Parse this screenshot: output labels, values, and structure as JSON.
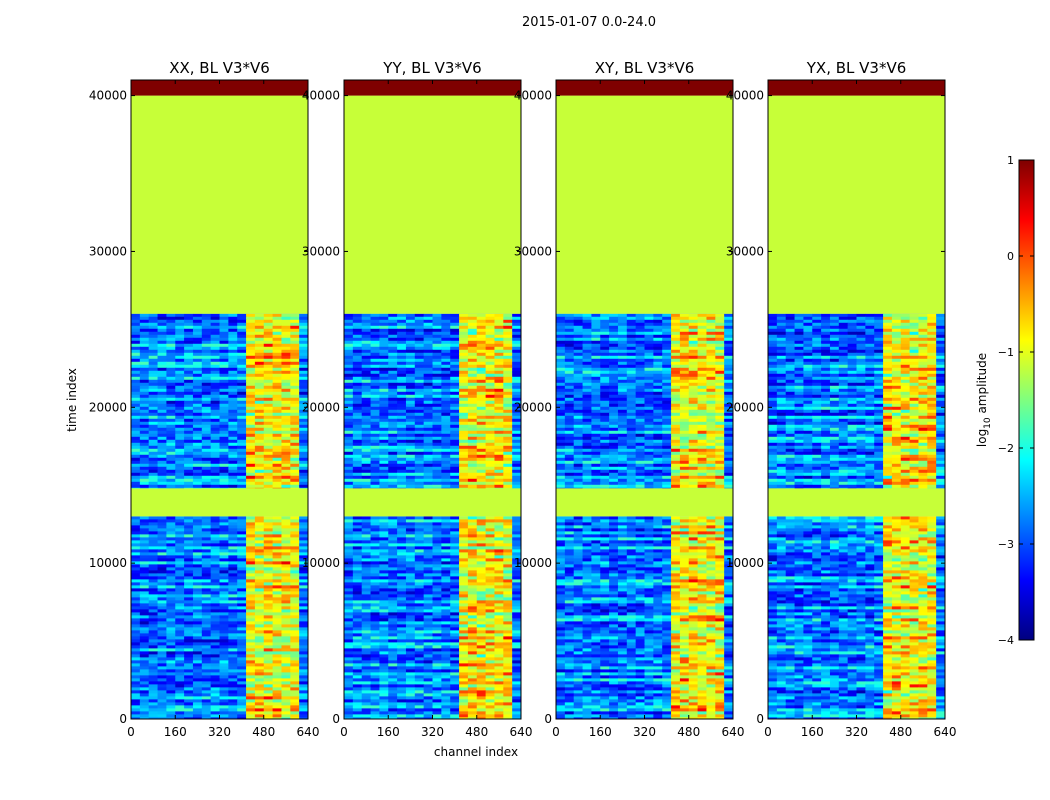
{
  "figure_title": "2015-01-07 0.0-24.0",
  "x_axis_label": "channel index",
  "y_axis_label": "time index",
  "chart_data": {
    "type": "heatmap",
    "title": "2015-01-07 0.0-24.0",
    "xlabel": "channel index",
    "ylabel": "time index",
    "xlim": [
      0,
      640
    ],
    "ylim": [
      0,
      41000
    ],
    "x_ticks": [
      0,
      160,
      320,
      480,
      640
    ],
    "y_ticks": [
      0,
      10000,
      20000,
      30000,
      40000
    ],
    "panels": [
      {
        "title": "XX, BL V3*V6"
      },
      {
        "title": "YY, BL V3*V6"
      },
      {
        "title": "XY, BL V3*V6"
      },
      {
        "title": "YX, BL V3*V6"
      }
    ],
    "colorbar": {
      "label_prefix": "log",
      "label_sub": "10",
      "label_suffix": " amplitude",
      "range": [
        -4,
        1
      ],
      "ticks": [
        "1",
        "0",
        "−1",
        "−2",
        "−3",
        "−4"
      ],
      "tick_values": [
        1,
        0,
        -1,
        -2,
        -3,
        -4
      ],
      "colormap": "jet",
      "stops": [
        "#00007f",
        "#0000ff",
        "#007fff",
        "#00ffff",
        "#7fff7f",
        "#ffff00",
        "#ff7f00",
        "#ff0000",
        "#7f0000"
      ]
    },
    "bands": {
      "flagged_value": -1.15,
      "flagged_ranges": [
        [
          26000,
          40000
        ],
        [
          13000,
          14800
        ]
      ],
      "saturated_ranges": [
        [
          40000,
          41000
        ]
      ],
      "noisy_ranges": [
        [
          0,
          13000
        ],
        [
          14800,
          26000
        ]
      ],
      "noise_mean": -2.9,
      "rfi_channel_range": [
        405,
        600
      ]
    }
  }
}
